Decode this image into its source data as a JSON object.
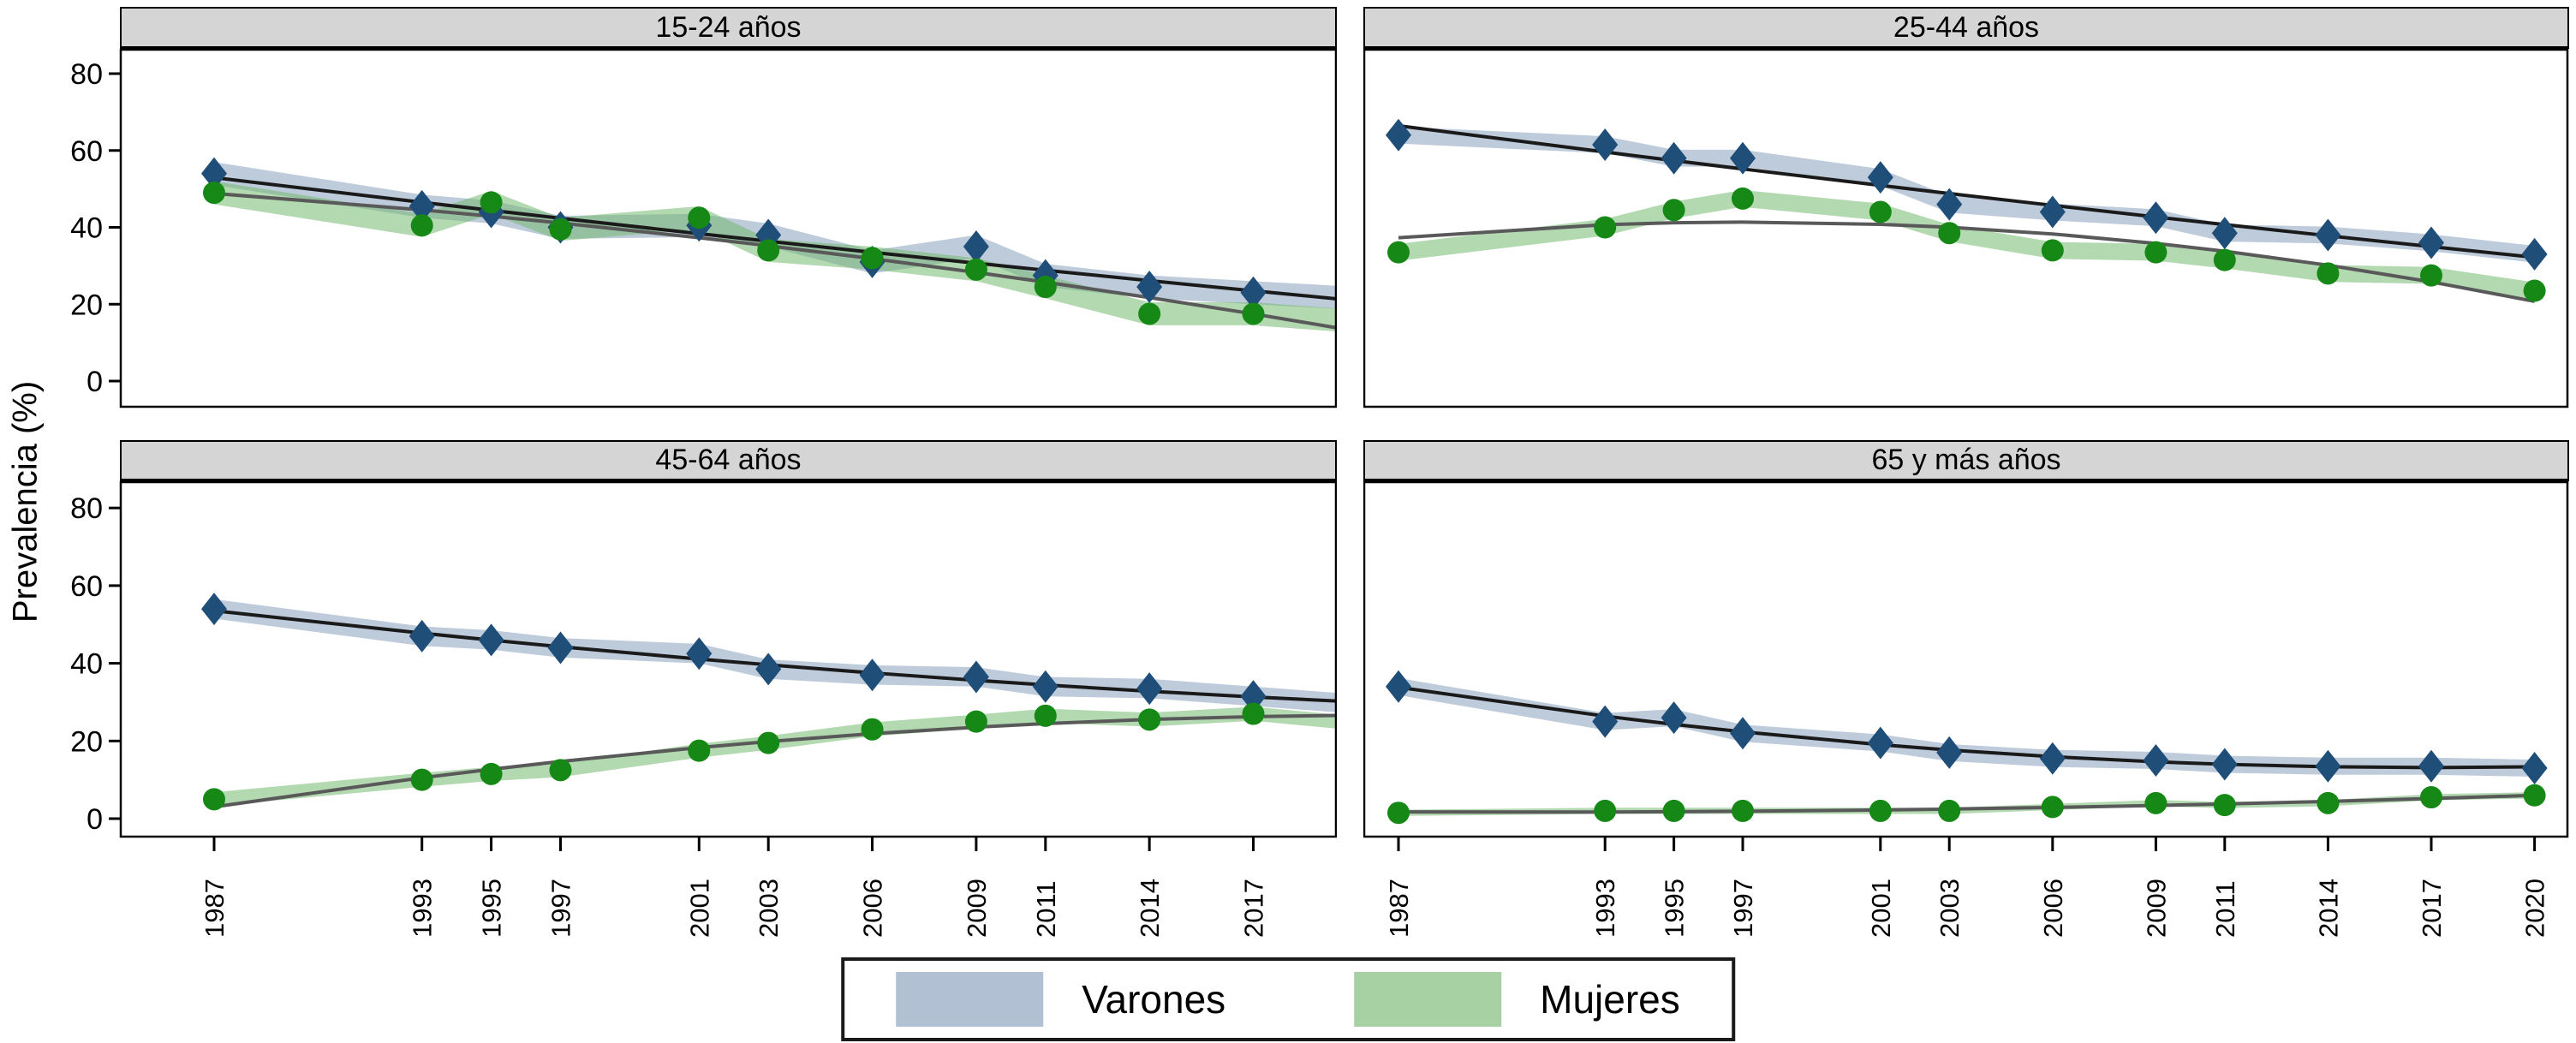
{
  "figure": {
    "ylabel": "Prevalencia (%)",
    "y_ticks": [
      0,
      20,
      40,
      60,
      80
    ],
    "x_years": [
      1987,
      1993,
      1995,
      1997,
      2001,
      2003,
      2006,
      2009,
      2011,
      2014,
      2017,
      2020
    ],
    "legend": [
      {
        "label": "Varones",
        "color": "#b1c0d3"
      },
      {
        "label": "Mujeres",
        "color": "#a7d1a2"
      }
    ],
    "colors": {
      "varones_marker": "#1f4e79",
      "varones_band": "rgba(125,152,183,0.5)",
      "varones_trend": "#1a1a1a",
      "mujeres_marker": "#168816",
      "mujeres_band": "rgba(116,186,112,0.55)",
      "mujeres_trend": "#595959",
      "header_bg": "#d5d5d5"
    }
  },
  "chart_data": [
    {
      "type": "line",
      "title": "15-24 años",
      "x": [
        1987,
        1993,
        1995,
        1997,
        2001,
        2003,
        2006,
        2009,
        2011,
        2014,
        2017,
        2020
      ],
      "xlabel": "",
      "ylabel": "Prevalencia (%)",
      "ylim": [
        0,
        88
      ],
      "grid": false,
      "series": [
        {
          "name": "Varones",
          "marker": "diamond",
          "values": [
            54,
            45.5,
            44,
            40,
            40.5,
            38,
            31,
            35,
            27.5,
            24.5,
            23,
            21.5
          ],
          "band_halfwidth": 3
        },
        {
          "name": "Mujeres",
          "marker": "circle",
          "values": [
            49,
            40.5,
            46.5,
            39.5,
            42.5,
            34,
            32,
            29,
            24.5,
            17.5,
            17.5,
            15.5
          ],
          "band_halfwidth": 3
        }
      ]
    },
    {
      "type": "line",
      "title": "25-44 años",
      "x": [
        1987,
        1993,
        1995,
        1997,
        2001,
        2003,
        2006,
        2009,
        2011,
        2014,
        2017,
        2020
      ],
      "xlabel": "",
      "ylabel": "Prevalencia (%)",
      "ylim": [
        0,
        88
      ],
      "grid": false,
      "series": [
        {
          "name": "Varones",
          "marker": "diamond",
          "values": [
            64,
            61.5,
            58,
            58,
            53,
            46,
            44,
            42.5,
            38.5,
            38,
            36,
            33
          ],
          "band_halfwidth": 2.2
        },
        {
          "name": "Mujeres",
          "marker": "circle",
          "values": [
            33.5,
            40,
            44.5,
            47.5,
            44,
            38.5,
            34,
            33.5,
            31.5,
            28,
            27.5,
            23.5
          ],
          "band_halfwidth": 2.2
        }
      ]
    },
    {
      "type": "line",
      "title": "45-64 años",
      "x": [
        1987,
        1993,
        1995,
        1997,
        2001,
        2003,
        2006,
        2009,
        2011,
        2014,
        2017,
        2020
      ],
      "xlabel": "",
      "ylabel": "Prevalencia (%)",
      "ylim": [
        0,
        88
      ],
      "grid": false,
      "series": [
        {
          "name": "Varones",
          "marker": "diamond",
          "values": [
            54,
            47,
            46,
            44,
            42.5,
            38.5,
            37,
            36.5,
            34,
            33.5,
            31.5,
            29.5
          ],
          "band_halfwidth": 2.5
        },
        {
          "name": "Mujeres",
          "marker": "circle",
          "values": [
            5,
            10,
            11.5,
            12.5,
            17.5,
            19.5,
            23,
            25,
            26.5,
            25.5,
            27,
            24.5
          ],
          "band_halfwidth": 1.8
        }
      ]
    },
    {
      "type": "line",
      "title": "65 y más años",
      "x": [
        1987,
        1993,
        1995,
        1997,
        2001,
        2003,
        2006,
        2009,
        2011,
        2014,
        2017,
        2020
      ],
      "xlabel": "",
      "ylabel": "Prevalencia (%)",
      "ylim": [
        0,
        88
      ],
      "grid": false,
      "series": [
        {
          "name": "Varones",
          "marker": "diamond",
          "values": [
            34,
            25,
            26,
            22,
            19.5,
            17,
            15.5,
            15,
            14,
            13.5,
            13.5,
            13
          ],
          "band_halfwidth": 2.2
        },
        {
          "name": "Mujeres",
          "marker": "circle",
          "values": [
            1.5,
            2,
            2,
            2,
            2,
            2,
            3,
            4,
            3.5,
            4,
            5.5,
            6
          ],
          "band_halfwidth": 0.8
        }
      ]
    }
  ]
}
